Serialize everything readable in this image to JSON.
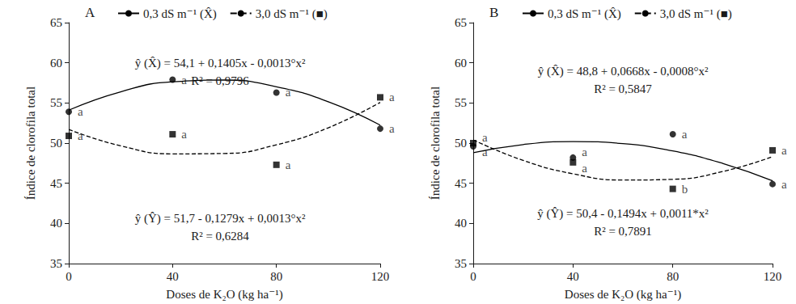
{
  "chart_data": [
    {
      "type": "line",
      "title": "A",
      "x_label": "Doses de K₂O (kg ha⁻¹)",
      "y_label": "Índice de clorofila total",
      "xlim": [
        0,
        120
      ],
      "xticks": [
        0,
        40,
        80,
        120
      ],
      "ylim": [
        35,
        65
      ],
      "yticks": [
        35,
        40,
        45,
        50,
        55,
        60,
        65
      ],
      "grid": false,
      "legend": "top",
      "x": [
        0,
        40,
        80,
        120
      ],
      "series": [
        {
          "name": "0,3 dS m⁻¹ (X̂)",
          "color": "#000000",
          "marker": "circle",
          "line_style": "solid",
          "values": [
            53.9,
            57.9,
            56.3,
            51.8
          ],
          "letters": [
            "a",
            "a",
            "a",
            "a"
          ],
          "curve_x": [
            0,
            20,
            40,
            60,
            80,
            100,
            120
          ],
          "curve_values": [
            54.1,
            56.39,
            57.64,
            57.85,
            57.02,
            55.15,
            52.24
          ]
        },
        {
          "name": "3,0 dS m⁻¹ (■)",
          "color": "#000000",
          "marker": "square",
          "line_style": "dashed",
          "values": [
            50.9,
            51.1,
            47.3,
            55.7
          ],
          "letters": [
            "a",
            "a",
            "a",
            "a"
          ],
          "curve_x": [
            0,
            20,
            40,
            60,
            80,
            100,
            120
          ],
          "curve_values": [
            51.7,
            49.66,
            48.66,
            48.71,
            49.79,
            51.91,
            55.07
          ]
        }
      ],
      "annotations": [
        "ŷ (X̂) = 54,1 + 0,1405x - 0,0013°x²",
        "R² = 0,9796",
        "ŷ (Ŷ) = 51,7 - 0,1279x + 0,0013°x²",
        "R² = 0,6284"
      ]
    },
    {
      "type": "line",
      "title": "B",
      "x_label": "Doses de K₂O (kg ha⁻¹)",
      "y_label": "Índice de clorofila total",
      "xlim": [
        0,
        120
      ],
      "xticks": [
        0,
        40,
        80,
        120
      ],
      "ylim": [
        35,
        65
      ],
      "yticks": [
        35,
        40,
        45,
        50,
        55,
        60,
        65
      ],
      "grid": false,
      "legend": "top",
      "x": [
        0,
        40,
        80,
        120
      ],
      "series": [
        {
          "name": "0,3 dS m⁻¹ (X̂)",
          "color": "#000000",
          "marker": "circle",
          "line_style": "solid",
          "values": [
            49.6,
            48.2,
            51.1,
            44.9
          ],
          "letters": [
            "a",
            "a",
            "a",
            "a"
          ],
          "curve_x": [
            0,
            20,
            40,
            60,
            80,
            100,
            120
          ],
          "curve_values": [
            48.8,
            49.82,
            50.19,
            49.93,
            49.02,
            47.48,
            45.3
          ]
        },
        {
          "name": "3,0 dS m⁻¹ (■)",
          "color": "#000000",
          "marker": "square",
          "line_style": "dashed",
          "values": [
            50.0,
            47.6,
            44.3,
            49.1
          ],
          "letters": [
            "a",
            "a",
            "b",
            "a"
          ],
          "curve_x": [
            0,
            20,
            40,
            60,
            80,
            100,
            120
          ],
          "curve_values": [
            50.4,
            47.85,
            46.18,
            45.4,
            45.49,
            46.46,
            48.31
          ]
        }
      ],
      "annotations": [
        "ŷ (X̂) = 48,8 + 0,0668x - 0,0008°x²",
        "R² = 0,5847",
        "ŷ (Ŷ) = 50,4 - 0,1494x + 0,0011*x²",
        "R² = 0,7891"
      ]
    }
  ]
}
